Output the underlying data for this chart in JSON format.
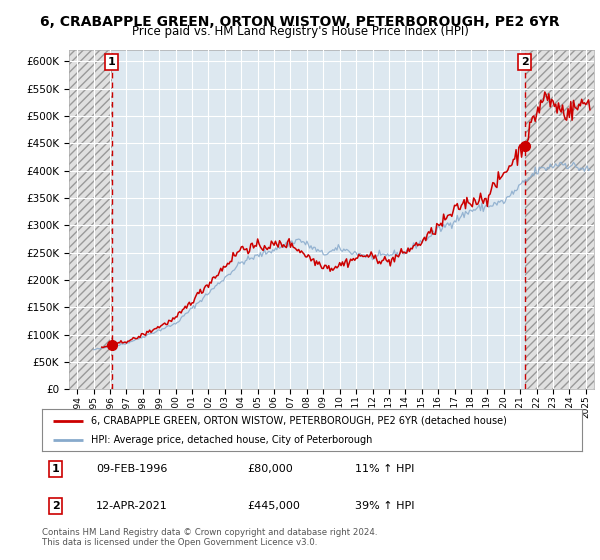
{
  "title": "6, CRABAPPLE GREEN, ORTON WISTOW, PETERBOROUGH, PE2 6YR",
  "subtitle": "Price paid vs. HM Land Registry's House Price Index (HPI)",
  "ylabel_ticks": [
    "£0",
    "£50K",
    "£100K",
    "£150K",
    "£200K",
    "£250K",
    "£300K",
    "£350K",
    "£400K",
    "£450K",
    "£500K",
    "£550K",
    "£600K"
  ],
  "ylim": [
    0,
    620000
  ],
  "xlim_start": 1993.5,
  "xlim_end": 2025.5,
  "legend_line1": "6, CRABAPPLE GREEN, ORTON WISTOW, PETERBOROUGH, PE2 6YR (detached house)",
  "legend_line2": "HPI: Average price, detached house, City of Peterborough",
  "sale1_date": "09-FEB-1996",
  "sale1_price": "£80,000",
  "sale1_hpi": "11% ↑ HPI",
  "sale1_year": 1996.1,
  "sale1_value": 80000,
  "sale2_date": "12-APR-2021",
  "sale2_price": "£445,000",
  "sale2_hpi": "39% ↑ HPI",
  "sale2_year": 2021.28,
  "sale2_value": 445000,
  "copyright": "Contains HM Land Registry data © Crown copyright and database right 2024.\nThis data is licensed under the Open Government Licence v3.0.",
  "line_color_red": "#cc0000",
  "line_color_blue": "#88aacc",
  "bg_color": "#dde8f0",
  "grid_color": "#ffffff",
  "hatch_bg": "#e8e8e8"
}
